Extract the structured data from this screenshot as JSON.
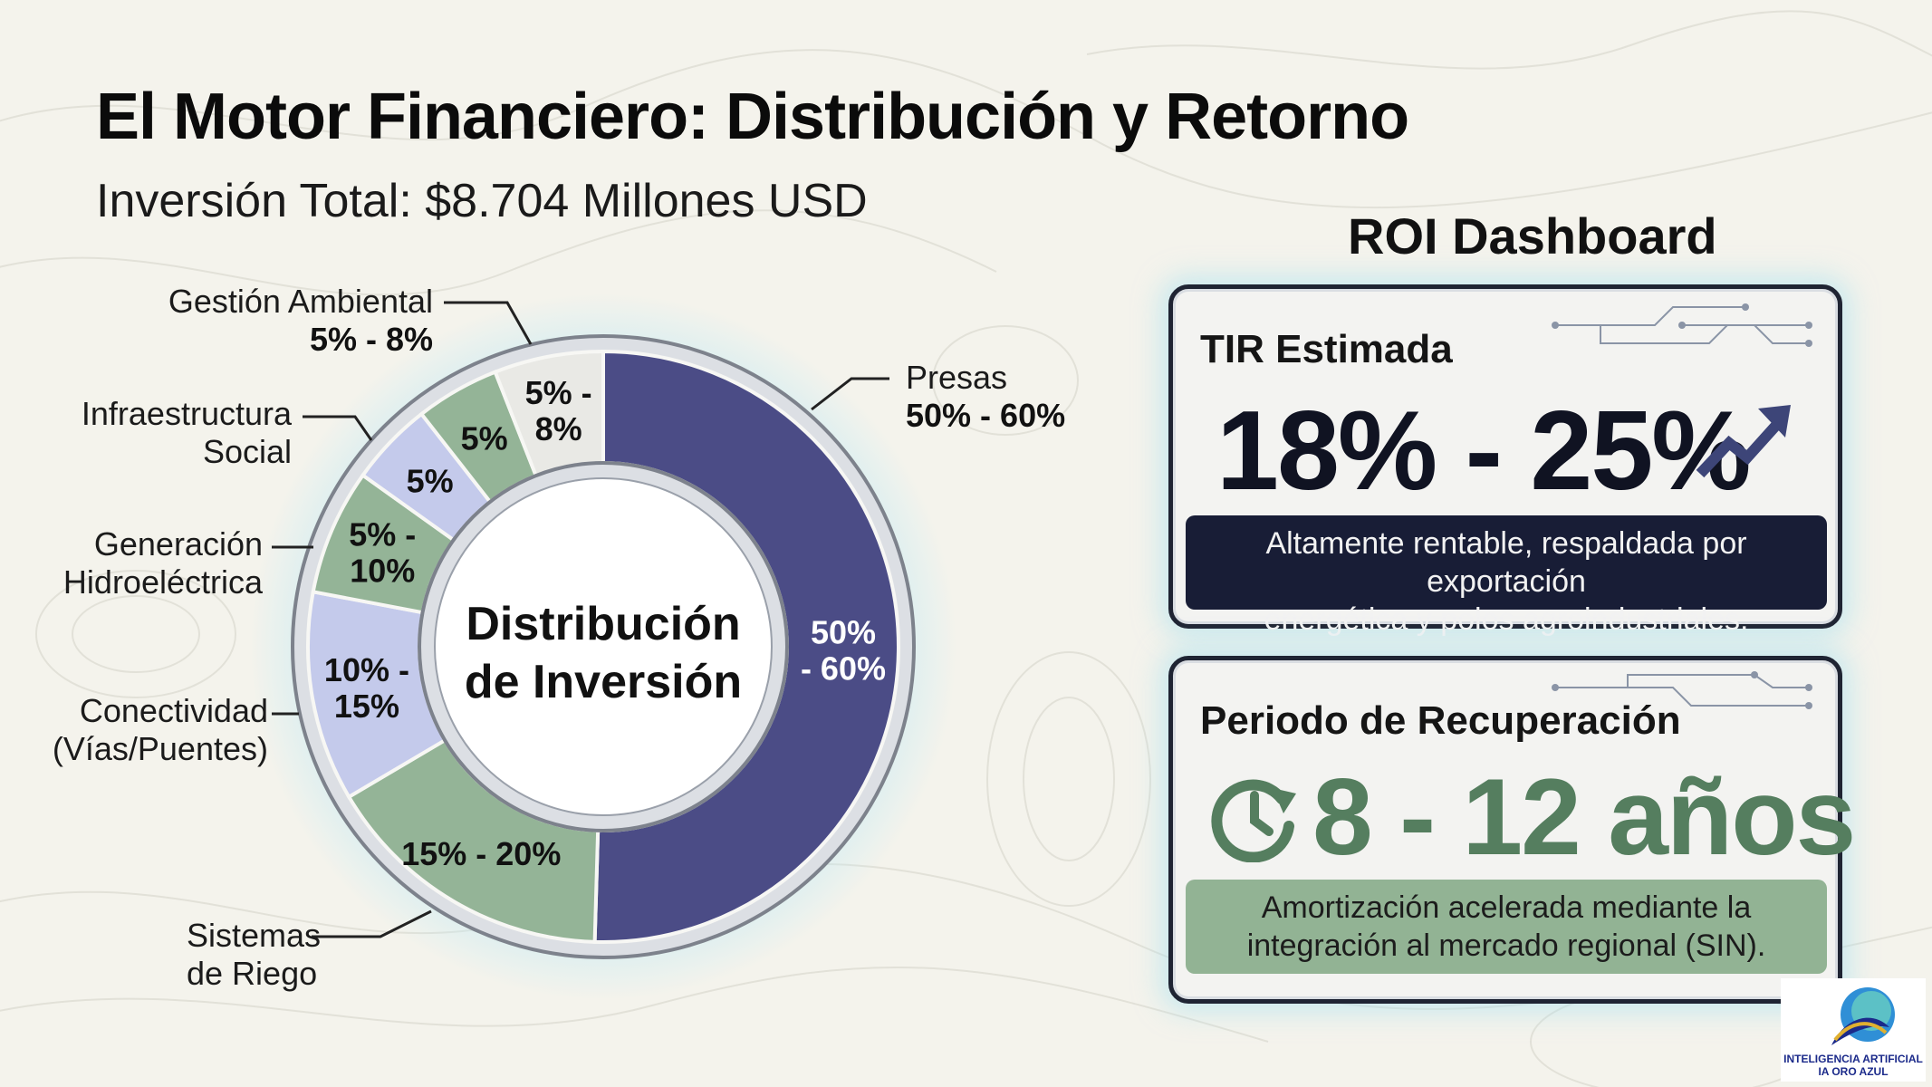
{
  "title": "El Motor Financiero: Distribución y Retorno",
  "subtitle": "Inversión Total: $8.704 Millones USD",
  "chart_data": {
    "type": "pie",
    "title": "Distribución de Inversión",
    "center_label_lines": [
      "Distribución",
      "de Inversión"
    ],
    "unit": "%",
    "slices": [
      {
        "name_lines": [
          "Presas"
        ],
        "range_label": "50% - 60%",
        "inner_label_lines": [
          "50%",
          "- 60%"
        ],
        "min": 50,
        "max": 60,
        "color": "#4b4c86",
        "light_text": true
      },
      {
        "name_lines": [
          "Sistemas",
          "de Riego"
        ],
        "range_label": "15% - 20%",
        "inner_label_lines": [
          "15% - 20%"
        ],
        "min": 15,
        "max": 20,
        "color": "#94b497",
        "light_text": false
      },
      {
        "name_lines": [
          "Conectividad",
          "(Vías/Puentes)"
        ],
        "range_label": "10% - 15%",
        "inner_label_lines": [
          "10% -",
          "15%"
        ],
        "min": 10,
        "max": 15,
        "color": "#c4caeb",
        "light_text": false
      },
      {
        "name_lines": [
          "Generación",
          "Hidroeléctrica"
        ],
        "range_label": "5% - 10%",
        "inner_label_lines": [
          "5% -",
          "10%"
        ],
        "min": 5,
        "max": 10,
        "color": "#94b497",
        "light_text": false
      },
      {
        "name_lines": [
          "Infraestructura",
          "Social"
        ],
        "range_label": "5%",
        "inner_label_lines": [
          "5%"
        ],
        "min": 5,
        "max": 5,
        "color": "#c4caeb",
        "light_text": false
      },
      {
        "name_lines": [],
        "range_label": "5%",
        "inner_label_lines": [
          "5%"
        ],
        "min": 5,
        "max": 5,
        "color": "#94b497",
        "light_text": false
      },
      {
        "name_lines": [
          "Gestión Ambiental"
        ],
        "range_label": "5% - 8%",
        "inner_label_lines": [
          "5% -",
          "8%"
        ],
        "min": 5,
        "max": 8,
        "color": "#e9e9e5",
        "light_text": false
      }
    ],
    "callouts": [
      {
        "slice": 0,
        "name": "Presas",
        "value": "50% - 60%"
      },
      {
        "slice": 1,
        "name_lines": [
          "Sistemas",
          "de Riego"
        ]
      },
      {
        "slice": 2,
        "name_lines": [
          "Conectividad",
          "(Vías/Puentes)"
        ]
      },
      {
        "slice": 3,
        "name_lines": [
          "Generación",
          "Hidroeléctrica"
        ]
      },
      {
        "slice": 4,
        "name_lines": [
          "Infraestructura",
          "Social"
        ]
      },
      {
        "slice": 6,
        "name": "Gestión Ambiental",
        "value": "5% - 8%"
      }
    ]
  },
  "dashboard": {
    "title": "ROI Dashboard",
    "tir": {
      "heading": "TIR Estimada",
      "value": "18% - 25%",
      "icon": "trend-up-arrow-icon",
      "note_lines": [
        "Altamente rentable, respaldada por exportación",
        "energética y polos agroindustriales."
      ]
    },
    "payback": {
      "heading": "Periodo de Recuperación",
      "value": "8 - 12 años",
      "icon": "clock-icon",
      "note_lines": [
        "Amortización acelerada mediante la",
        "integración al mercado regional (SIN)."
      ]
    }
  },
  "colors": {
    "navy": "#4b4c86",
    "sage": "#94b497",
    "lavender": "#c4caeb",
    "payback_green": "#557e5f",
    "dark_note": "#181d36"
  },
  "logo": {
    "line1": "INTELIGENCIA ARTIFICIAL",
    "line2": "IA ORO AZUL"
  }
}
